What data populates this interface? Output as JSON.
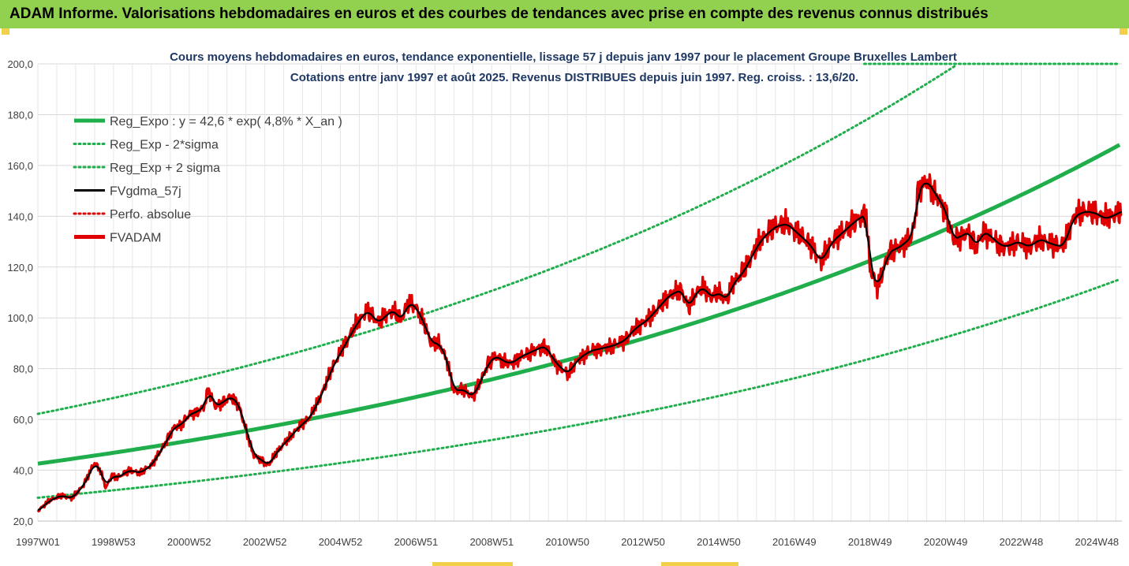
{
  "header": {
    "title": "ADAM Informe. Valorisations hebdomadaires en euros et des courbes de tendances avec prise en compte des revenus connus distribués"
  },
  "colors": {
    "header_bg": "#92d050",
    "reg_expo": "#1fae4b",
    "sigma_bands": "#1fae4b",
    "fvgdma": "#000000",
    "perfo": "#e00000",
    "fvadam": "#e00000",
    "accent_marks": "#f2d04a"
  },
  "chart_data": {
    "type": "line",
    "title_line1": "Cours moyens hebdomadaires en euros, tendance exponentielle, lissage 57 j depuis janv 1997 pour le placement Groupe Bruxelles Lambert",
    "title_line2": "Cotations entre janv 1997 et août 2025.  Revenus DISTRIBUES depuis juin 1997.  Reg. croiss. : 13,6/20.",
    "xlabel": "",
    "ylabel": "",
    "ylim": [
      20,
      200
    ],
    "xlim": [
      1997.0,
      2025.66
    ],
    "y_ticks": [
      "20,0",
      "40,0",
      "60,0",
      "80,0",
      "100,0",
      "120,0",
      "140,0",
      "160,0",
      "180,0",
      "200,0"
    ],
    "x_ticks": [
      {
        "label": "1997W01",
        "t": 1997.0
      },
      {
        "label": "1998W53",
        "t": 1999.0
      },
      {
        "label": "2000W52",
        "t": 2001.0
      },
      {
        "label": "2002W52",
        "t": 2003.0
      },
      {
        "label": "2004W52",
        "t": 2005.0
      },
      {
        "label": "2006W51",
        "t": 2007.0
      },
      {
        "label": "2008W51",
        "t": 2009.0
      },
      {
        "label": "2010W50",
        "t": 2011.0
      },
      {
        "label": "2012W50",
        "t": 2013.0
      },
      {
        "label": "2014W50",
        "t": 2015.0
      },
      {
        "label": "2016W49",
        "t": 2017.0
      },
      {
        "label": "2018W49",
        "t": 2019.0
      },
      {
        "label": "2020W49",
        "t": 2021.0
      },
      {
        "label": "2022W48",
        "t": 2023.0
      },
      {
        "label": "2024W48",
        "t": 2025.0
      }
    ],
    "grid": true,
    "legend_position": "top-left",
    "regression": {
      "a": 42.6,
      "rate": 0.048,
      "minus_2sigma_factor": 0.685,
      "plus_2sigma_factor": 1.46
    },
    "series": [
      {
        "name": "Reg_Expo : y = 42,6 * exp( 4,8% *  X_an )",
        "style": "thick-solid",
        "color": "#1fae4b",
        "kind": "reg"
      },
      {
        "name": "Reg_Exp - 2*sigma",
        "style": "dotted",
        "color": "#1fae4b",
        "kind": "low"
      },
      {
        "name": "Reg_Exp + 2 sigma",
        "style": "dotted",
        "color": "#1fae4b",
        "kind": "high"
      },
      {
        "name": "FVgdma_57j",
        "style": "solid",
        "color": "#000000",
        "kind": "smooth"
      },
      {
        "name": "Perfo. absolue",
        "style": "dotted",
        "color": "#e00000",
        "kind": "perfo"
      },
      {
        "name": "FVADAM",
        "style": "thick-solid",
        "color": "#e00000",
        "kind": "price"
      }
    ],
    "fvadam": {
      "t": [
        1997.0,
        1997.3,
        1997.6,
        1997.9,
        1998.2,
        1998.5,
        1998.65,
        1998.8,
        1998.95,
        1999.1,
        1999.4,
        1999.7,
        2000.0,
        2000.3,
        2000.6,
        2000.8,
        2001.0,
        2001.2,
        2001.4,
        2001.5,
        2001.7,
        2001.9,
        2002.1,
        2002.3,
        2002.5,
        2002.7,
        2002.9,
        2003.1,
        2003.3,
        2003.6,
        2003.9,
        2004.2,
        2004.5,
        2004.8,
        2005.1,
        2005.4,
        2005.7,
        2006.0,
        2006.2,
        2006.4,
        2006.6,
        2006.8,
        2007.0,
        2007.2,
        2007.4,
        2007.6,
        2007.8,
        2008.0,
        2008.2,
        2008.5,
        2008.7,
        2008.9,
        2009.1,
        2009.3,
        2009.5,
        2009.8,
        2010.1,
        2010.4,
        2010.7,
        2011.0,
        2011.3,
        2011.6,
        2011.9,
        2012.2,
        2012.5,
        2012.8,
        2013.1,
        2013.4,
        2013.7,
        2014.0,
        2014.2,
        2014.4,
        2014.6,
        2014.8,
        2015.0,
        2015.2,
        2015.4,
        2015.6,
        2015.8,
        2016.0,
        2016.2,
        2016.5,
        2016.8,
        2017.1,
        2017.4,
        2017.7,
        2018.0,
        2018.3,
        2018.6,
        2018.9,
        2019.0,
        2019.2,
        2019.5,
        2019.8,
        2020.1,
        2020.2,
        2020.25,
        2020.3,
        2020.5,
        2020.8,
        2021.0,
        2021.2,
        2021.4,
        2021.6,
        2021.8,
        2022.0,
        2022.2,
        2022.4,
        2022.6,
        2022.9,
        2023.2,
        2023.5,
        2023.8,
        2024.1,
        2024.4,
        2024.7,
        2025.0,
        2025.2,
        2025.4,
        2025.66
      ],
      "y": [
        24,
        28,
        30,
        29,
        34,
        43,
        40,
        33,
        38,
        37,
        40,
        39,
        42,
        49,
        57,
        58,
        62,
        63,
        65,
        72,
        65,
        67,
        69,
        66,
        56,
        46,
        44,
        42,
        47,
        52,
        57,
        61,
        70,
        81,
        89,
        97,
        103,
        98,
        101,
        103,
        99,
        106,
        104,
        98,
        90,
        90,
        84,
        71,
        72,
        69,
        75,
        82,
        85,
        83,
        82,
        85,
        87,
        89,
        82,
        78,
        84,
        87,
        88,
        89,
        91,
        96,
        99,
        104,
        109,
        111,
        104,
        110,
        112,
        108,
        110,
        107,
        114,
        117,
        122,
        128,
        132,
        136,
        137,
        133,
        129,
        122,
        130,
        134,
        138,
        141,
        119,
        112,
        126,
        128,
        132,
        140,
        148,
        151,
        154,
        147,
        142,
        131,
        132,
        134,
        128,
        134,
        132,
        129,
        128,
        130,
        128,
        131,
        129,
        128,
        140,
        142,
        141,
        139,
        140,
        142
      ]
    }
  }
}
